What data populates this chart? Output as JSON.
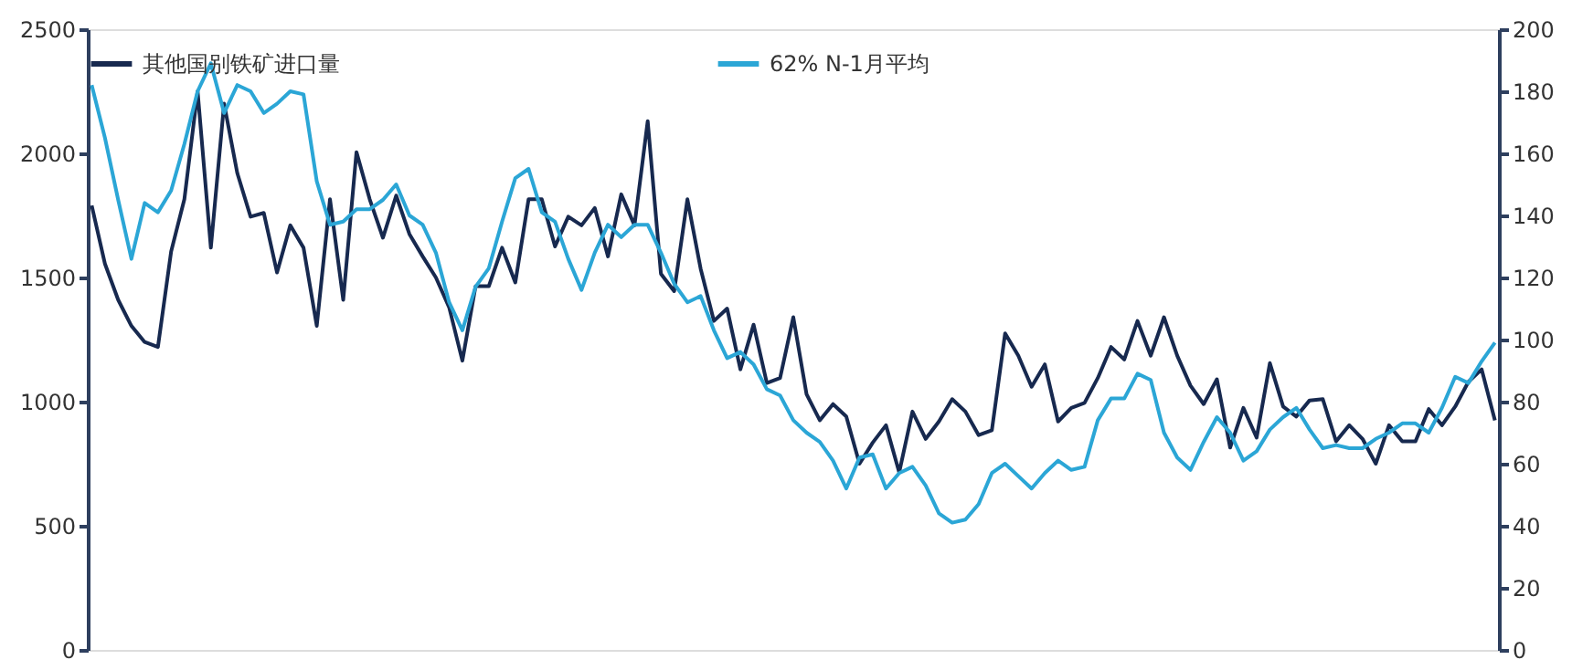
{
  "chart_data": {
    "type": "line",
    "categories": [
      null,
      null,
      null,
      null,
      null,
      null,
      null,
      null,
      null,
      null,
      null,
      null,
      null,
      null,
      null,
      null,
      null,
      null,
      null,
      null,
      null,
      null,
      null,
      null,
      null,
      null,
      null,
      null,
      null,
      null,
      null,
      null,
      null,
      null,
      null,
      null,
      null,
      null,
      null,
      null,
      null,
      null,
      null,
      null,
      null,
      null,
      null,
      null,
      null,
      null,
      null,
      null,
      null,
      null,
      null,
      null,
      null,
      null,
      null,
      null,
      null,
      null,
      null,
      null,
      null,
      null,
      null,
      null,
      null,
      null,
      null,
      null,
      null,
      null,
      null,
      null,
      null,
      null,
      null,
      null,
      null,
      null,
      null,
      null,
      null,
      null,
      null,
      null,
      null,
      null,
      null,
      null,
      null,
      null,
      null,
      null,
      null,
      null,
      null,
      null,
      null,
      null,
      null,
      null,
      null,
      null,
      null
    ],
    "series": [
      {
        "name": "其他国别铁矿进口量",
        "color": "#17294f",
        "values": [
          1790,
          1555,
          1410,
          1305,
          1240,
          1220,
          1605,
          1815,
          2250,
          1620,
          2200,
          1920,
          1745,
          1760,
          1520,
          1710,
          1620,
          1305,
          1815,
          1410,
          2005,
          1815,
          1660,
          1830,
          1675,
          1585,
          1500,
          1380,
          1165,
          1465,
          1465,
          1620,
          1480,
          1815,
          1815,
          1625,
          1745,
          1710,
          1780,
          1585,
          1835,
          1710,
          2130,
          1515,
          1445,
          1815,
          1535,
          1325,
          1375,
          1130,
          1310,
          1075,
          1095,
          1340,
          1030,
          925,
          990,
          940,
          750,
          835,
          905,
          715,
          960,
          850,
          920,
          1010,
          960,
          865,
          885,
          1275,
          1185,
          1060,
          1150,
          920,
          975,
          995,
          1095,
          1220,
          1170,
          1325,
          1185,
          1340,
          1185,
          1065,
          990,
          1090,
          815,
          975,
          855,
          1155,
          980,
          940,
          1005,
          1010,
          840,
          905,
          850,
          750,
          905,
          840,
          840,
          970,
          905,
          980,
          1080,
          1130,
          925
        ]
      },
      {
        "name": "62% N-1月平均",
        "color": "#2ba6d6",
        "axis": "y2",
        "values": [
          182,
          165,
          145,
          126,
          144,
          141,
          148,
          163,
          180,
          189,
          173,
          182,
          180,
          173,
          176,
          180,
          179,
          151,
          137,
          138,
          142,
          142,
          145,
          150,
          140,
          137,
          128,
          112,
          103,
          117,
          123,
          138,
          152,
          155,
          141,
          138,
          126,
          116,
          128,
          137,
          133,
          137,
          137,
          128,
          118,
          112,
          114,
          103,
          94,
          96,
          92,
          84,
          82,
          74,
          70,
          67,
          61,
          52,
          62,
          63,
          52,
          57,
          59,
          53,
          44,
          41,
          42,
          47,
          57,
          60,
          56,
          52,
          57,
          61,
          58,
          59,
          74,
          81,
          81,
          89,
          87,
          70,
          62,
          58,
          67,
          75,
          70,
          61,
          64,
          71,
          75,
          78,
          71,
          65,
          66,
          65,
          65,
          68,
          70,
          73,
          73,
          70,
          78,
          88,
          86,
          93,
          99
        ]
      }
    ],
    "ylim": [
      0,
      2500
    ],
    "yticks": [
      0,
      500,
      1000,
      1500,
      2000,
      2500
    ],
    "y2lim": [
      0,
      200
    ],
    "y2ticks": [
      0,
      20,
      40,
      60,
      80,
      100,
      120,
      140,
      160,
      180,
      200
    ],
    "tick_labels": "y",
    "grid": false,
    "legend": "top",
    "line_style": "solid",
    "marker": "none"
  }
}
